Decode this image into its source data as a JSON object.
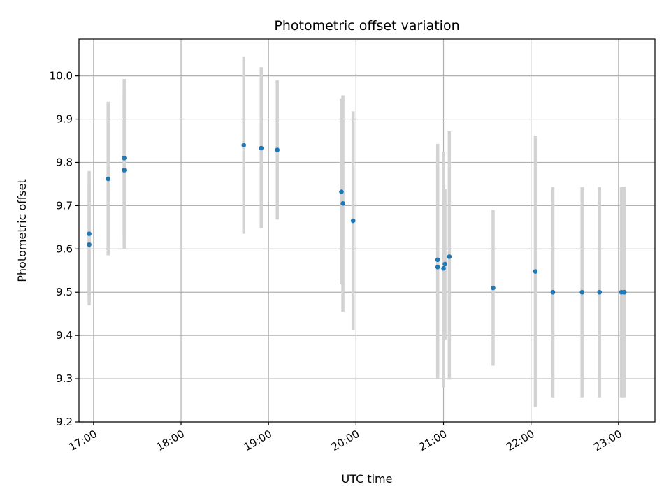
{
  "chart_data": {
    "type": "scatter",
    "title": "Photometric offset variation",
    "xlabel": "UTC time",
    "ylabel": "Photometric offset",
    "x_axis": {
      "kind": "time",
      "xlim": [
        "16:50",
        "23:25"
      ],
      "ticks": [
        "17:00",
        "18:00",
        "19:00",
        "20:00",
        "21:00",
        "22:00",
        "23:00"
      ]
    },
    "y_axis": {
      "ylim": [
        9.2,
        10.085
      ],
      "ticks": [
        "9.2",
        "9.3",
        "9.4",
        "9.5",
        "9.6",
        "9.7",
        "9.8",
        "9.9",
        "10.0"
      ]
    },
    "grid": true,
    "colors": {
      "points": "#1f77b4",
      "error_bars": "#d3d3d3",
      "grid": "#b0b0b0"
    },
    "series": [
      {
        "points": [
          {
            "time": "16:57",
            "y": 9.635,
            "lo": 9.49,
            "hi": 9.78
          },
          {
            "time": "16:57",
            "y": 9.61,
            "lo": 9.47,
            "hi": 9.75
          },
          {
            "time": "17:10",
            "y": 9.762,
            "lo": 9.585,
            "hi": 9.94
          },
          {
            "time": "17:21",
            "y": 9.81,
            "lo": 9.63,
            "hi": 9.993
          },
          {
            "time": "17:21",
            "y": 9.782,
            "lo": 9.6,
            "hi": 9.965
          },
          {
            "time": "18:43",
            "y": 9.84,
            "lo": 9.635,
            "hi": 10.045
          },
          {
            "time": "18:55",
            "y": 9.833,
            "lo": 9.648,
            "hi": 10.02
          },
          {
            "time": "19:06",
            "y": 9.829,
            "lo": 9.668,
            "hi": 9.99
          },
          {
            "time": "19:50",
            "y": 9.732,
            "lo": 9.518,
            "hi": 9.948
          },
          {
            "time": "19:51",
            "y": 9.705,
            "lo": 9.455,
            "hi": 9.955
          },
          {
            "time": "19:58",
            "y": 9.665,
            "lo": 9.413,
            "hi": 9.918
          },
          {
            "time": "20:56",
            "y": 9.575,
            "lo": 9.305,
            "hi": 9.843
          },
          {
            "time": "20:56",
            "y": 9.558,
            "lo": 9.3,
            "hi": 9.815
          },
          {
            "time": "21:00",
            "y": 9.555,
            "lo": 9.28,
            "hi": 9.825
          },
          {
            "time": "21:01",
            "y": 9.565,
            "lo": 9.39,
            "hi": 9.738
          },
          {
            "time": "21:04",
            "y": 9.582,
            "lo": 9.298,
            "hi": 9.872
          },
          {
            "time": "21:34",
            "y": 9.51,
            "lo": 9.33,
            "hi": 9.69
          },
          {
            "time": "22:03",
            "y": 9.548,
            "lo": 9.235,
            "hi": 9.862
          },
          {
            "time": "22:15",
            "y": 9.5,
            "lo": 9.257,
            "hi": 9.743
          },
          {
            "time": "22:35",
            "y": 9.5,
            "lo": 9.257,
            "hi": 9.743
          },
          {
            "time": "22:47",
            "y": 9.5,
            "lo": 9.257,
            "hi": 9.743
          },
          {
            "time": "23:02",
            "y": 9.5,
            "lo": 9.257,
            "hi": 9.743
          },
          {
            "time": "23:04",
            "y": 9.5,
            "lo": 9.257,
            "hi": 9.743
          }
        ]
      }
    ]
  }
}
